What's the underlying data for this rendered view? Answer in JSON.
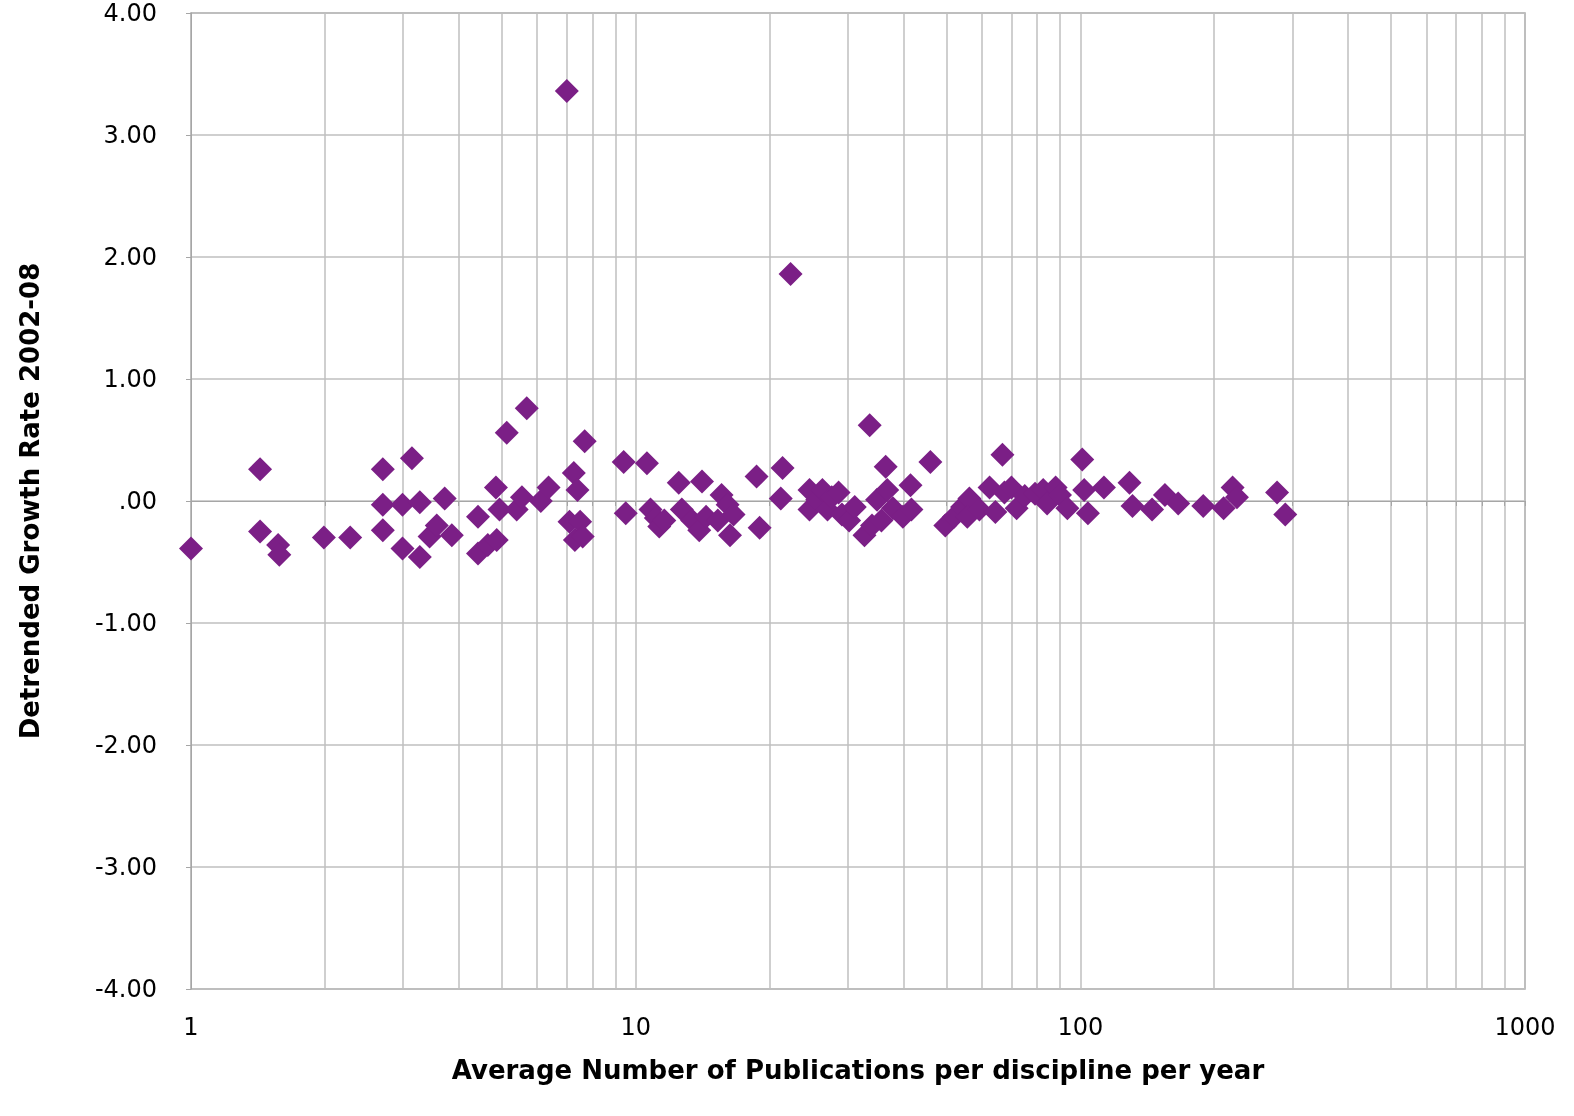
{
  "chart_data": {
    "type": "scatter",
    "xlabel": "Average Number of Publications per discipline per year",
    "ylabel": "Detrended Growth Rate 2002-08",
    "log": "x",
    "grid": true,
    "marker": "diamond",
    "xlim": [
      1,
      1000
    ],
    "xticks": [
      1,
      {
        "value": 2,
        "label": null
      },
      {
        "value": 3,
        "label": null
      },
      {
        "value": 4,
        "label": null
      },
      {
        "value": 5,
        "label": null
      },
      {
        "value": 6,
        "label": null
      },
      {
        "value": 7,
        "label": null
      },
      {
        "value": 8,
        "label": null
      },
      {
        "value": 9,
        "label": null
      },
      10,
      {
        "value": 20,
        "label": null
      },
      {
        "value": 30,
        "label": null
      },
      {
        "value": 40,
        "label": null
      },
      {
        "value": 50,
        "label": null
      },
      {
        "value": 60,
        "label": null
      },
      {
        "value": 70,
        "label": null
      },
      {
        "value": 80,
        "label": null
      },
      {
        "value": 90,
        "label": null
      },
      100,
      {
        "value": 200,
        "label": null
      },
      {
        "value": 300,
        "label": null
      },
      {
        "value": 400,
        "label": null
      },
      {
        "value": 500,
        "label": null
      },
      {
        "value": 600,
        "label": null
      },
      {
        "value": 700,
        "label": null
      },
      {
        "value": 800,
        "label": null
      },
      {
        "value": 900,
        "label": null
      },
      1000
    ],
    "ylim": [
      -4,
      4
    ],
    "yticks": [
      {
        "value": -4,
        "label": "-4.00"
      },
      {
        "value": -3,
        "label": "-3.00"
      },
      {
        "value": -2,
        "label": "-2.00"
      },
      {
        "value": -1,
        "label": "-1.00"
      },
      {
        "value": 0,
        "label": ".00"
      },
      {
        "value": 1,
        "label": "1.00"
      },
      {
        "value": 2,
        "label": "2.00"
      },
      {
        "value": 3,
        "label": "3.00"
      },
      {
        "value": 4,
        "label": "4.00"
      }
    ],
    "series": [
      {
        "color": "#7b1f86",
        "x": [
          1,
          1.43,
          1.43,
          1.57,
          1.58,
          1.99,
          2.28,
          2.7,
          2.7,
          2.7,
          2.99,
          2.99,
          3.14,
          3.27,
          3.27,
          3.44,
          3.57,
          3.72,
          3.86,
          4.42,
          4.42,
          4.65,
          4.85,
          4.87,
          4.94,
          5.13,
          5.4,
          5.55,
          5.69,
          6.12,
          6.37,
          7.0,
          7.26,
          7.1,
          7.3,
          7.4,
          7.5,
          7.6,
          7.68,
          9.4,
          9.5,
          10.6,
          10.8,
          11.1,
          11.3,
          11.6,
          12.5,
          12.7,
          13.4,
          14.1,
          13.9,
          14.4,
          15.3,
          15.6,
          16.1,
          16.3,
          16.6,
          18.7,
          19.0,
          21.4,
          21.2,
          22.3,
          24.6,
          24.6,
          25.6,
          26.3,
          27.0,
          27.6,
          28.6,
          29.1,
          30.2,
          31.1,
          32.7,
          33.6,
          34.0,
          34.9,
          35.7,
          36.5,
          36.8,
          37.9,
          39.9,
          41.5,
          41.7,
          46.0,
          49.7,
          52.0,
          54.2,
          56.3,
          55.7,
          59.3,
          62.5,
          64.4,
          66.8,
          67.5,
          70.0,
          71.9,
          75.0,
          79.1,
          82.5,
          84.2,
          88.0,
          90,
          93.5,
          101,
          102,
          104,
          113,
          129,
          131,
          145,
          155,
          166,
          189,
          210,
          220,
          225,
          277,
          289
        ],
        "values": [
          -0.39,
          0.26,
          -0.25,
          -0.36,
          -0.44,
          -0.3,
          -0.3,
          0.26,
          -0.03,
          -0.24,
          -0.03,
          -0.39,
          0.35,
          -0.01,
          -0.46,
          -0.29,
          -0.2,
          0.02,
          -0.28,
          -0.13,
          -0.43,
          -0.36,
          0.11,
          -0.32,
          -0.07,
          0.56,
          -0.07,
          0.03,
          0.76,
          0.0,
          0.11,
          3.36,
          0.23,
          -0.17,
          -0.32,
          0.09,
          -0.17,
          -0.29,
          0.49,
          0.32,
          -0.1,
          0.31,
          -0.07,
          -0.14,
          -0.21,
          -0.16,
          0.15,
          -0.07,
          -0.16,
          0.16,
          -0.24,
          -0.13,
          -0.16,
          0.05,
          -0.03,
          -0.28,
          -0.11,
          0.2,
          -0.22,
          0.27,
          0.02,
          1.86,
          0.09,
          -0.07,
          0.01,
          0.09,
          -0.07,
          0.03,
          0.07,
          -0.11,
          -0.16,
          -0.05,
          -0.28,
          0.62,
          -0.2,
          0.01,
          -0.16,
          0.28,
          0.09,
          -0.06,
          -0.13,
          0.13,
          -0.07,
          0.32,
          -0.2,
          -0.13,
          -0.05,
          0.02,
          -0.13,
          -0.07,
          0.11,
          -0.09,
          0.38,
          0.07,
          0.11,
          -0.06,
          0.04,
          0.06,
          0.09,
          -0.02,
          0.11,
          0.05,
          -0.06,
          0.34,
          0.09,
          -0.1,
          0.11,
          0.15,
          -0.04,
          -0.07,
          0.05,
          -0.02,
          -0.04,
          -0.06,
          0.11,
          0.03,
          0.07,
          -0.11
        ]
      }
    ]
  }
}
